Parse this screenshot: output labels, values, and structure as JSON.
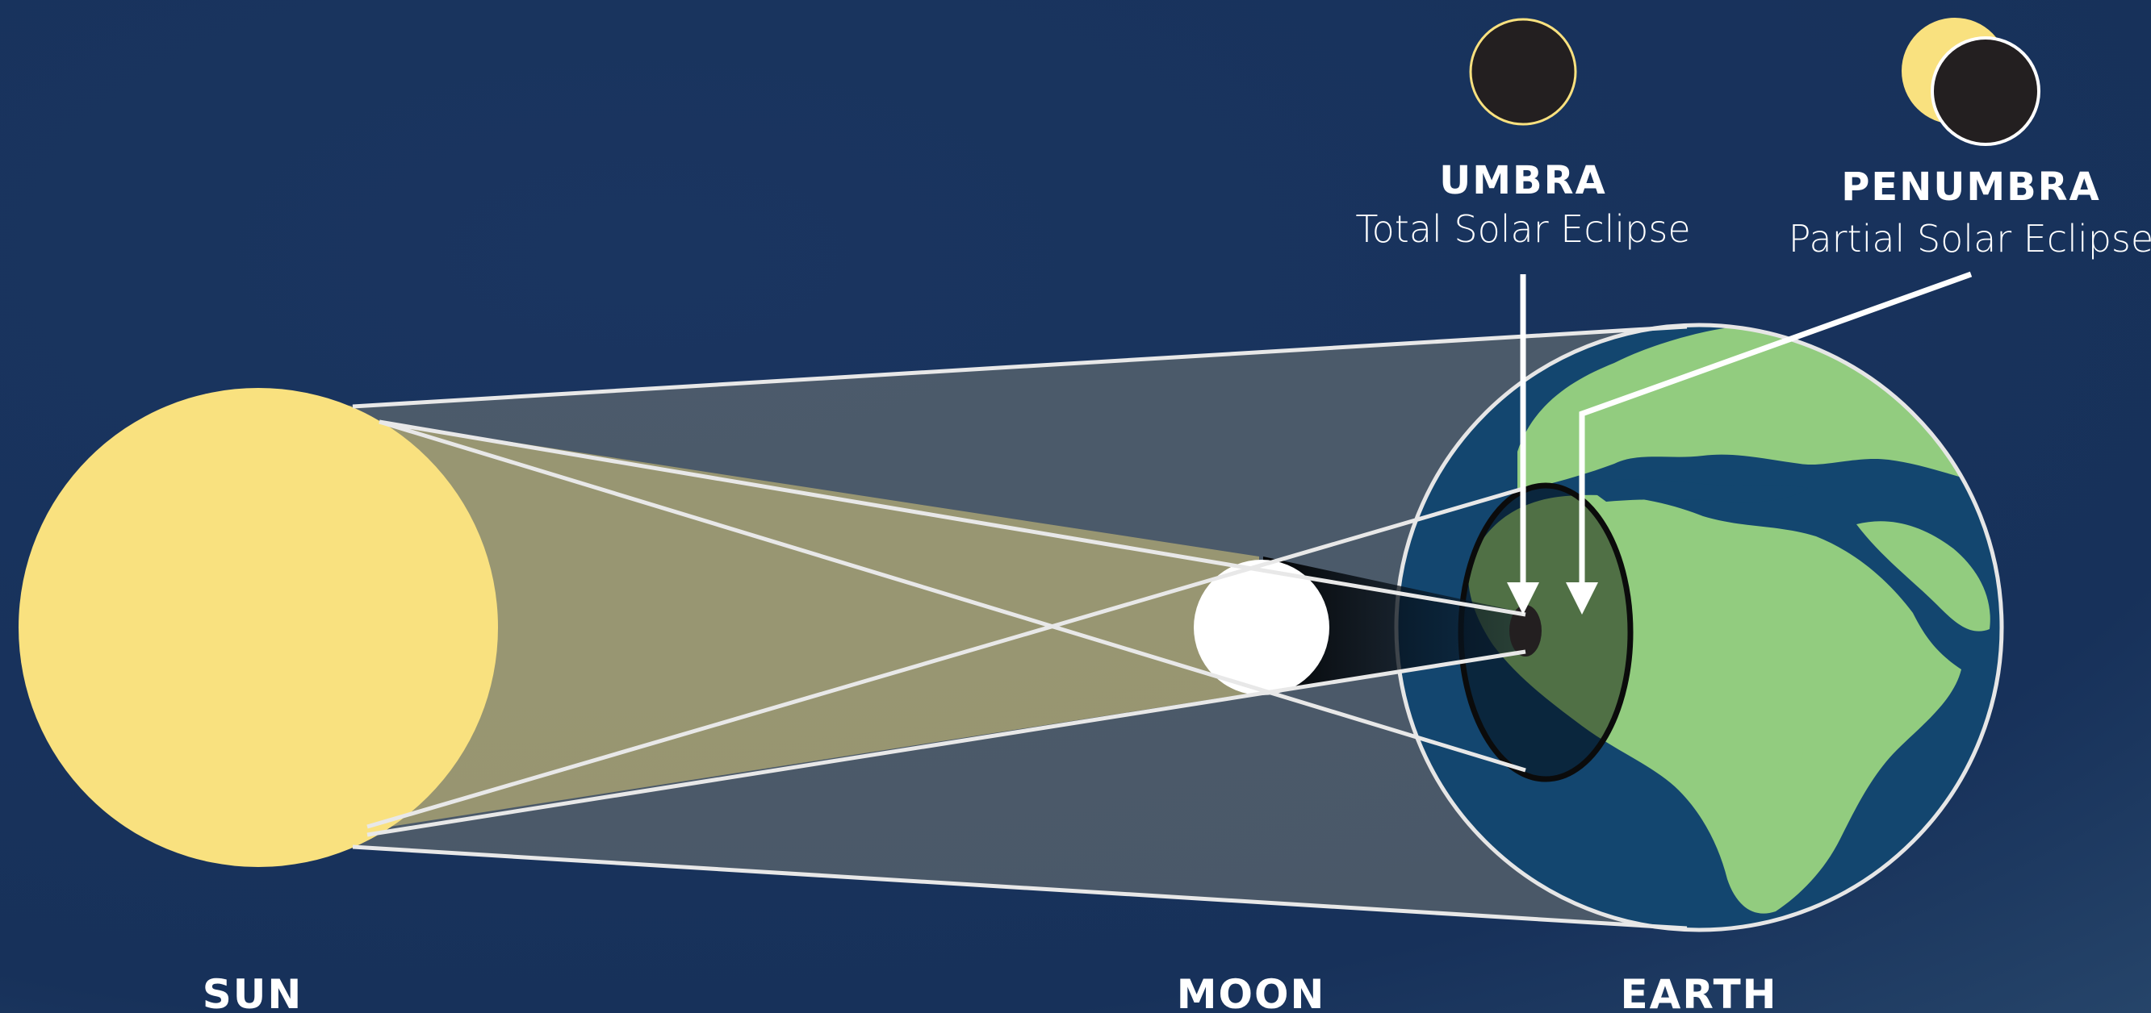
{
  "bodies": {
    "sun": "SUN",
    "moon": "MOON",
    "earth": "EARTH"
  },
  "callouts": {
    "umbra": {
      "title": "UMBRA",
      "subtitle": "Total Solar Eclipse"
    },
    "penumbra": {
      "title": "PENUMBRA",
      "subtitle": "Partial Solar Eclipse"
    }
  },
  "colors": {
    "background": "#17335a",
    "sun": "#f9e17f",
    "moon": "#ffffff",
    "ocean": "#13466f",
    "land": "#92cc7f",
    "eclipse_disc": "#231f20"
  }
}
